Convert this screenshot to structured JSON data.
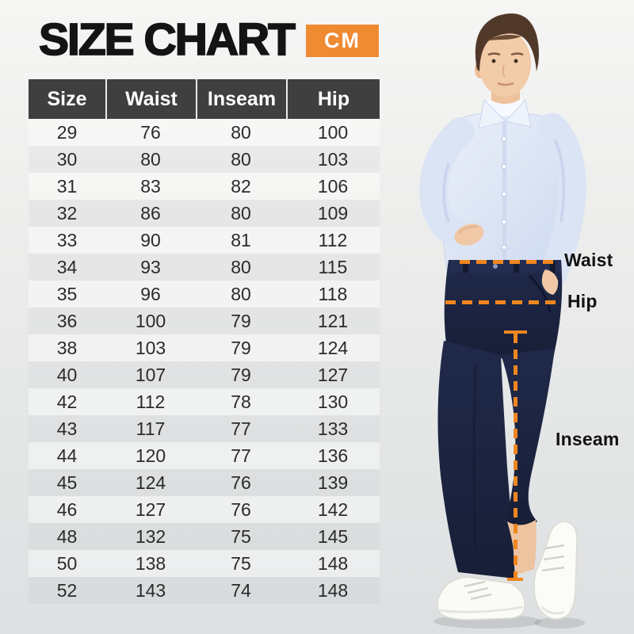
{
  "page": {
    "title": "SIZE CHART",
    "unit_badge": "CM"
  },
  "table": {
    "headers": [
      "Size",
      "Waist",
      "Inseam",
      "Hip"
    ],
    "rows": [
      [
        "29",
        "76",
        "80",
        "100"
      ],
      [
        "30",
        "80",
        "80",
        "103"
      ],
      [
        "31",
        "83",
        "82",
        "106"
      ],
      [
        "32",
        "86",
        "80",
        "109"
      ],
      [
        "33",
        "90",
        "81",
        "112"
      ],
      [
        "34",
        "93",
        "80",
        "115"
      ],
      [
        "35",
        "96",
        "80",
        "118"
      ],
      [
        "36",
        "100",
        "79",
        "121"
      ],
      [
        "38",
        "103",
        "79",
        "124"
      ],
      [
        "40",
        "107",
        "79",
        "127"
      ],
      [
        "42",
        "112",
        "78",
        "130"
      ],
      [
        "43",
        "117",
        "77",
        "133"
      ],
      [
        "44",
        "120",
        "77",
        "136"
      ],
      [
        "45",
        "124",
        "76",
        "139"
      ],
      [
        "46",
        "127",
        "76",
        "142"
      ],
      [
        "48",
        "132",
        "75",
        "145"
      ],
      [
        "50",
        "138",
        "75",
        "148"
      ],
      [
        "52",
        "143",
        "74",
        "148"
      ]
    ]
  },
  "annotations": {
    "waist": "Waist",
    "hip": "Hip",
    "inseam": "Inseam"
  },
  "colors": {
    "accent_orange": "#EF8B33",
    "dash_orange": "#F0861F",
    "header_bg": "#3F3F3F",
    "header_text": "#FFFFFF",
    "body_text": "#2B2B2B",
    "pants_navy": "#1D2540",
    "shirt_blue": "#DCE4F4",
    "title_black": "#141414"
  },
  "chart_data": {
    "type": "table",
    "title": "SIZE CHART",
    "unit": "CM",
    "columns": [
      "Size",
      "Waist",
      "Inseam",
      "Hip"
    ],
    "rows": [
      [
        29,
        76,
        80,
        100
      ],
      [
        30,
        80,
        80,
        103
      ],
      [
        31,
        83,
        82,
        106
      ],
      [
        32,
        86,
        80,
        109
      ],
      [
        33,
        90,
        81,
        112
      ],
      [
        34,
        93,
        80,
        115
      ],
      [
        35,
        96,
        80,
        118
      ],
      [
        36,
        100,
        79,
        121
      ],
      [
        38,
        103,
        79,
        124
      ],
      [
        40,
        107,
        79,
        127
      ],
      [
        42,
        112,
        78,
        130
      ],
      [
        43,
        117,
        77,
        133
      ],
      [
        44,
        120,
        77,
        136
      ],
      [
        45,
        124,
        76,
        139
      ],
      [
        46,
        127,
        76,
        142
      ],
      [
        48,
        132,
        75,
        145
      ],
      [
        50,
        138,
        75,
        148
      ],
      [
        52,
        143,
        74,
        148
      ]
    ],
    "annotations": [
      "Waist",
      "Hip",
      "Inseam"
    ],
    "layout_hints": "dark header row, subtle striped body rows, model photo on right with orange dashed measurement guides"
  }
}
